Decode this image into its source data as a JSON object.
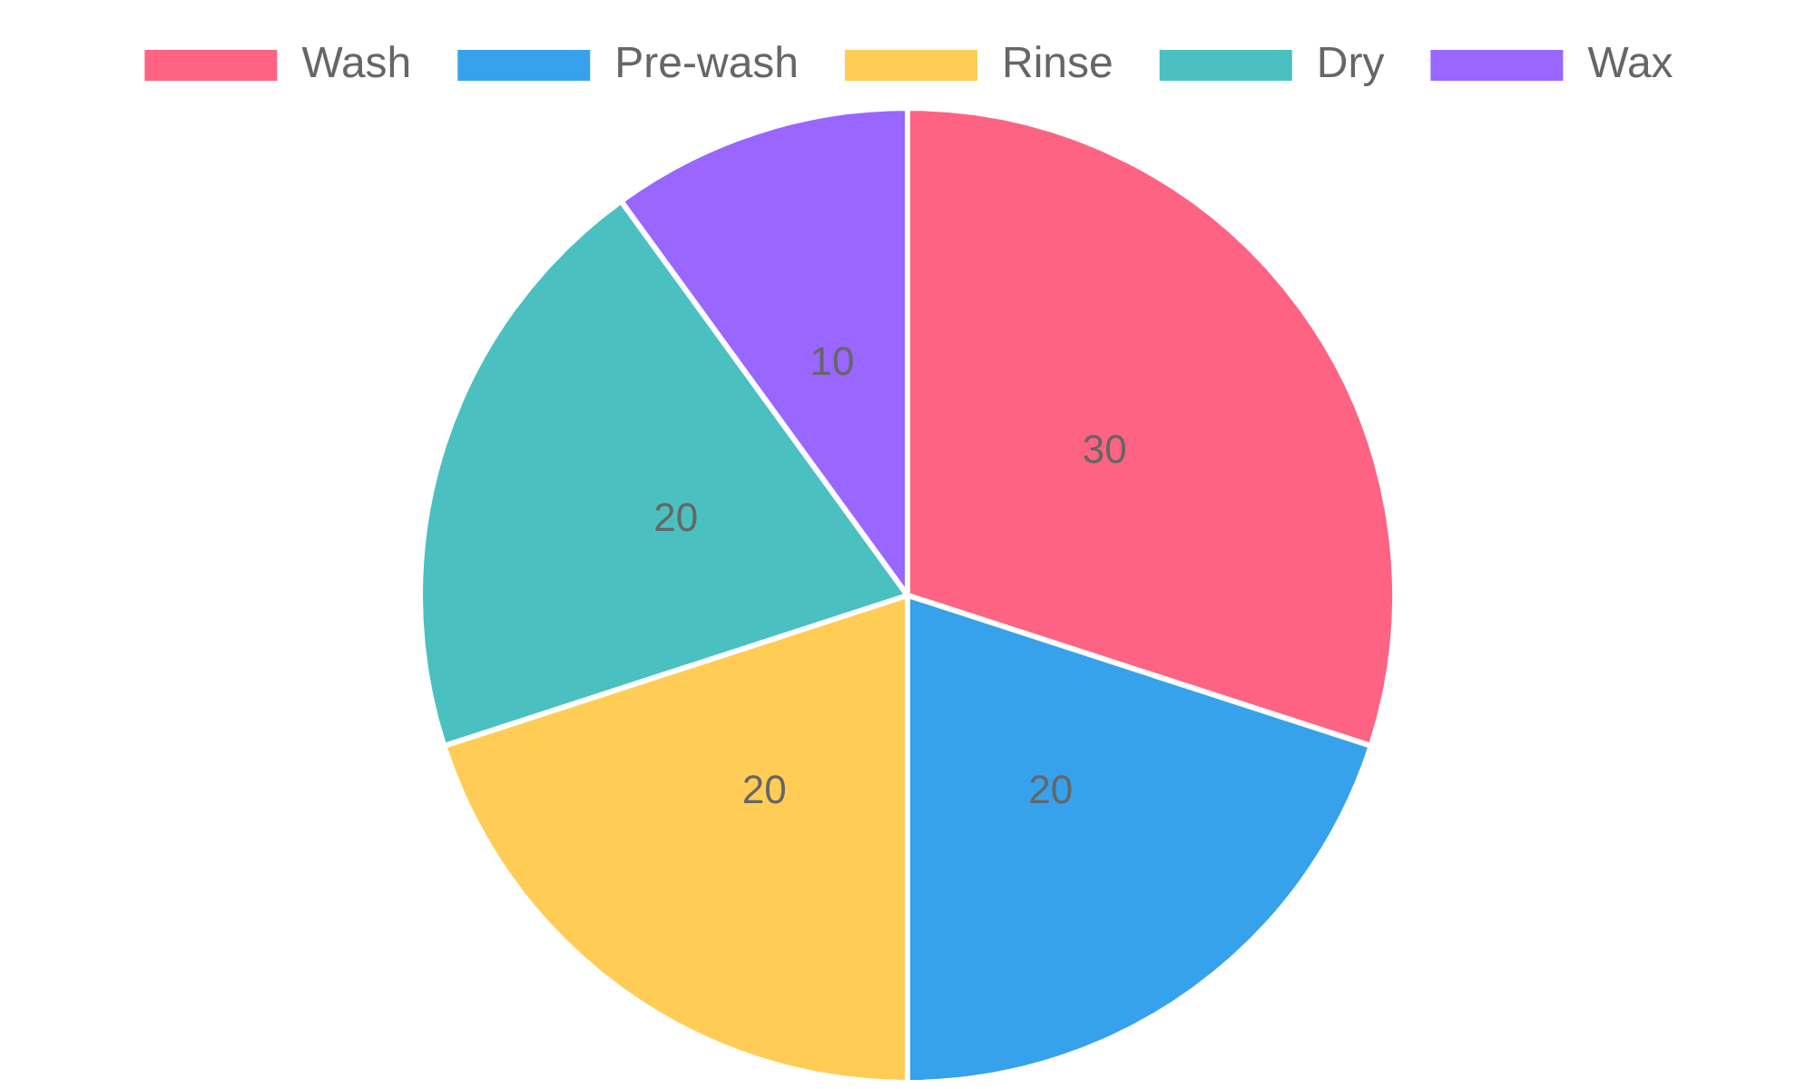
{
  "chart_data": {
    "type": "pie",
    "categories": [
      "Wash",
      "Pre-wash",
      "Rinse",
      "Dry",
      "Wax"
    ],
    "values": [
      30,
      20,
      20,
      20,
      10
    ],
    "colors": [
      "#ff6384",
      "#36a2eb",
      "#ffcd56",
      "#4bc0c0",
      "#9966ff"
    ],
    "legend": "top",
    "data_labels": true
  }
}
